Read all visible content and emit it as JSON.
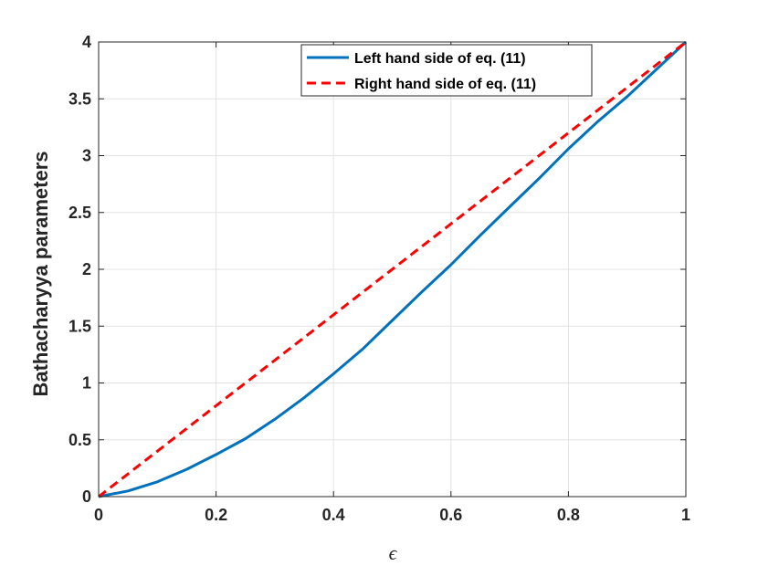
{
  "chart_data": {
    "type": "line",
    "title": "",
    "xlabel": "ϵ",
    "ylabel": "Bathacharyya parameters",
    "xlim": [
      0,
      1
    ],
    "ylim": [
      0,
      4
    ],
    "xticks": [
      0,
      0.2,
      0.4,
      0.6,
      0.8,
      1
    ],
    "xtick_labels": [
      "0",
      "0.2",
      "0.4",
      "0.6",
      "0.8",
      "1"
    ],
    "yticks": [
      0,
      0.5,
      1,
      1.5,
      2,
      2.5,
      3,
      3.5,
      4
    ],
    "ytick_labels": [
      "0",
      "0.5",
      "1",
      "1.5",
      "2",
      "2.5",
      "3",
      "3.5",
      "4"
    ],
    "grid": true,
    "legend_position": "top-right",
    "series": [
      {
        "name": "Left hand side of eq. (11)",
        "color": "#0072BD",
        "style": "solid",
        "x": [
          0,
          0.05,
          0.1,
          0.15,
          0.2,
          0.25,
          0.3,
          0.35,
          0.4,
          0.45,
          0.5,
          0.55,
          0.6,
          0.65,
          0.7,
          0.75,
          0.8,
          0.85,
          0.9,
          0.95,
          1
        ],
        "y": [
          0,
          0.05,
          0.13,
          0.24,
          0.37,
          0.51,
          0.68,
          0.87,
          1.08,
          1.3,
          1.55,
          1.8,
          2.04,
          2.3,
          2.55,
          2.8,
          3.06,
          3.3,
          3.52,
          3.76,
          4
        ]
      },
      {
        "name": "Right hand side of eq. (11)",
        "color": "#FF0000",
        "style": "dashed",
        "x": [
          0,
          1
        ],
        "y": [
          0,
          4
        ]
      }
    ]
  }
}
